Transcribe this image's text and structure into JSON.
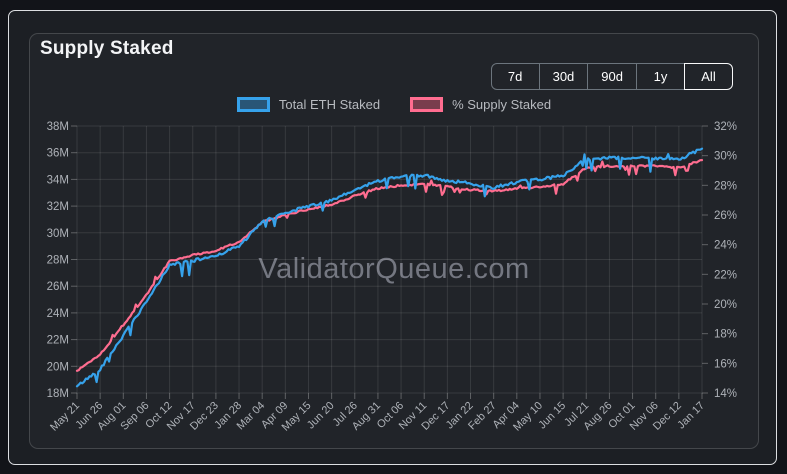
{
  "card": {
    "title": "Supply Staked"
  },
  "range_selector": {
    "options": [
      {
        "label": "7d",
        "active": false
      },
      {
        "label": "30d",
        "active": false
      },
      {
        "label": "90d",
        "active": false
      },
      {
        "label": "1y",
        "active": false
      },
      {
        "label": "All",
        "active": true
      }
    ]
  },
  "watermark": "ValidatorQueue.com",
  "colors": {
    "card_background": "#212429",
    "panel_background": "#1c1f24",
    "page_background": "#121419",
    "grid": "rgba(255,255,255,0.10)",
    "tick": "rgba(255,255,255,0.28)",
    "axis_text": "#aeb2b8",
    "blue_series": "#36a2eb",
    "pink_series": "#ff6d90",
    "blue_fill": "rgba(54,162,235,0.40)",
    "pink_fill": "rgba(255,99,132,0.40)"
  },
  "chart_data": {
    "type": "line",
    "title": "Supply Staked",
    "grid": true,
    "legend_position": "top",
    "x_labels": [
      "May 21",
      "Jun 26",
      "Aug 01",
      "Sep 06",
      "Oct 12",
      "Nov 17",
      "Dec 23",
      "Jan 28",
      "Mar 04",
      "Apr 09",
      "May 15",
      "Jun 20",
      "Jul 26",
      "Aug 31",
      "Oct 06",
      "Nov 11",
      "Dec 17",
      "Jan 22",
      "Feb 27",
      "Apr 04",
      "May 10",
      "Jun 15",
      "Jul 21",
      "Aug 26",
      "Oct 01",
      "Nov 06",
      "Dec 12",
      "Jan 17"
    ],
    "left_axis": {
      "min": 18,
      "max": 38,
      "step": 2,
      "unit": "M",
      "tick_labels": [
        "18M",
        "20M",
        "22M",
        "24M",
        "26M",
        "28M",
        "30M",
        "32M",
        "34M",
        "36M",
        "38M"
      ]
    },
    "right_axis": {
      "min": 14,
      "max": 32,
      "step": 2,
      "unit": "%",
      "tick_labels": [
        "14%",
        "16%",
        "18%",
        "20%",
        "22%",
        "24%",
        "26%",
        "28%",
        "30%",
        "32%"
      ]
    },
    "series": [
      {
        "name": "Total ETH Staked",
        "axis": "left",
        "color": "#36a2eb",
        "fill": "rgba(54,162,235,0.40)",
        "unit": "M ETH",
        "values": [
          18.5,
          19.8,
          22.3,
          24.8,
          27.6,
          27.9,
          28.3,
          29.0,
          30.8,
          31.5,
          32.0,
          32.4,
          33.2,
          33.9,
          34.2,
          34.3,
          33.9,
          33.7,
          33.4,
          33.8,
          34.0,
          34.3,
          35.5,
          35.6,
          35.6,
          35.6,
          35.5,
          36.3
        ]
      },
      {
        "name": "% Supply Staked",
        "axis": "right",
        "color": "#ff6d90",
        "fill": "rgba(255,99,132,0.40)",
        "unit": "%",
        "values": [
          15.5,
          16.6,
          18.6,
          20.6,
          22.9,
          23.3,
          23.6,
          24.2,
          25.5,
          26.0,
          26.4,
          26.7,
          27.3,
          27.8,
          28.0,
          28.1,
          27.9,
          27.7,
          27.6,
          27.8,
          27.9,
          28.1,
          29.2,
          29.3,
          29.3,
          29.3,
          29.2,
          29.7
        ]
      }
    ]
  }
}
